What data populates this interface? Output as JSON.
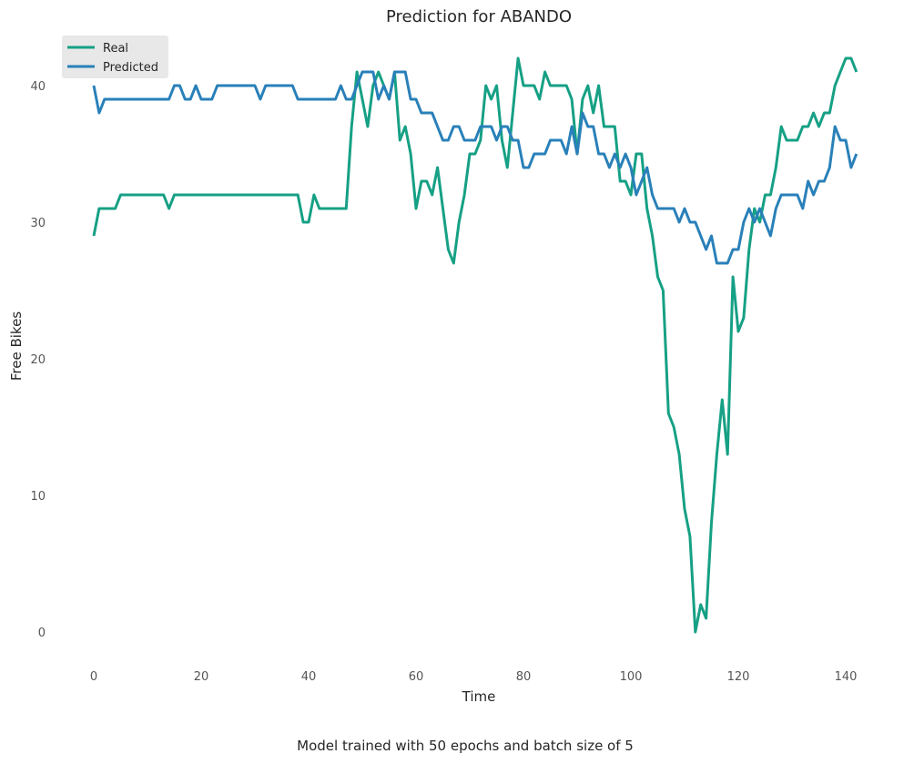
{
  "chart_data": {
    "type": "line",
    "title": "Prediction for ABANDO",
    "xlabel": "Time",
    "ylabel": "Free Bikes",
    "caption": "Model trained with 50 epochs and batch size of 5",
    "xlim": [
      -5,
      145
    ],
    "ylim": [
      -2,
      43
    ],
    "xticks": [
      0,
      20,
      40,
      60,
      80,
      100,
      120,
      140
    ],
    "yticks": [
      0,
      10,
      20,
      30,
      40
    ],
    "grid": false,
    "legend": "top-left",
    "series": [
      {
        "name": "Real",
        "color": "#16a085",
        "values": [
          29,
          31,
          31,
          31,
          31,
          32,
          32,
          32,
          32,
          32,
          32,
          32,
          32,
          32,
          31,
          32,
          32,
          32,
          32,
          32,
          32,
          32,
          32,
          32,
          32,
          32,
          32,
          32,
          32,
          32,
          32,
          32,
          32,
          32,
          32,
          32,
          32,
          32,
          32,
          30,
          30,
          32,
          31,
          31,
          31,
          31,
          31,
          31,
          37,
          41,
          39,
          37,
          40,
          41,
          40,
          39,
          41,
          36,
          37,
          35,
          31,
          33,
          33,
          32,
          34,
          31,
          28,
          27,
          30,
          32,
          35,
          35,
          36,
          40,
          39,
          40,
          36,
          34,
          38,
          42,
          40,
          40,
          40,
          39,
          41,
          40,
          40,
          40,
          40,
          39,
          35,
          39,
          40,
          38,
          40,
          37,
          37,
          37,
          33,
          33,
          32,
          35,
          35,
          31,
          29,
          26,
          25,
          16,
          15,
          13,
          9,
          7,
          0,
          2,
          1,
          8,
          13,
          17,
          13,
          26,
          22,
          23,
          28,
          31,
          30,
          32,
          32,
          34,
          37,
          36,
          36,
          36,
          37,
          37,
          38,
          37,
          38,
          38,
          40,
          41,
          42,
          42,
          41
        ]
      },
      {
        "name": "Predicted",
        "color": "#2980b9",
        "values": [
          40,
          38,
          39,
          39,
          39,
          39,
          39,
          39,
          39,
          39,
          39,
          39,
          39,
          39,
          39,
          40,
          40,
          39,
          39,
          40,
          39,
          39,
          39,
          40,
          40,
          40,
          40,
          40,
          40,
          40,
          40,
          39,
          40,
          40,
          40,
          40,
          40,
          40,
          39,
          39,
          39,
          39,
          39,
          39,
          39,
          39,
          40,
          39,
          39,
          40,
          41,
          41,
          41,
          39,
          40,
          39,
          41,
          41,
          41,
          39,
          39,
          38,
          38,
          38,
          37,
          36,
          36,
          37,
          37,
          36,
          36,
          36,
          37,
          37,
          37,
          36,
          37,
          37,
          36,
          36,
          34,
          34,
          35,
          35,
          35,
          36,
          36,
          36,
          35,
          37,
          35,
          38,
          37,
          37,
          35,
          35,
          34,
          35,
          34,
          35,
          34,
          32,
          33,
          34,
          32,
          31,
          31,
          31,
          31,
          30,
          31,
          30,
          30,
          29,
          28,
          29,
          27,
          27,
          27,
          28,
          28,
          30,
          31,
          30,
          31,
          30,
          29,
          31,
          32,
          32,
          32,
          32,
          31,
          33,
          32,
          33,
          33,
          34,
          37,
          36,
          36,
          34,
          35
        ]
      }
    ]
  }
}
